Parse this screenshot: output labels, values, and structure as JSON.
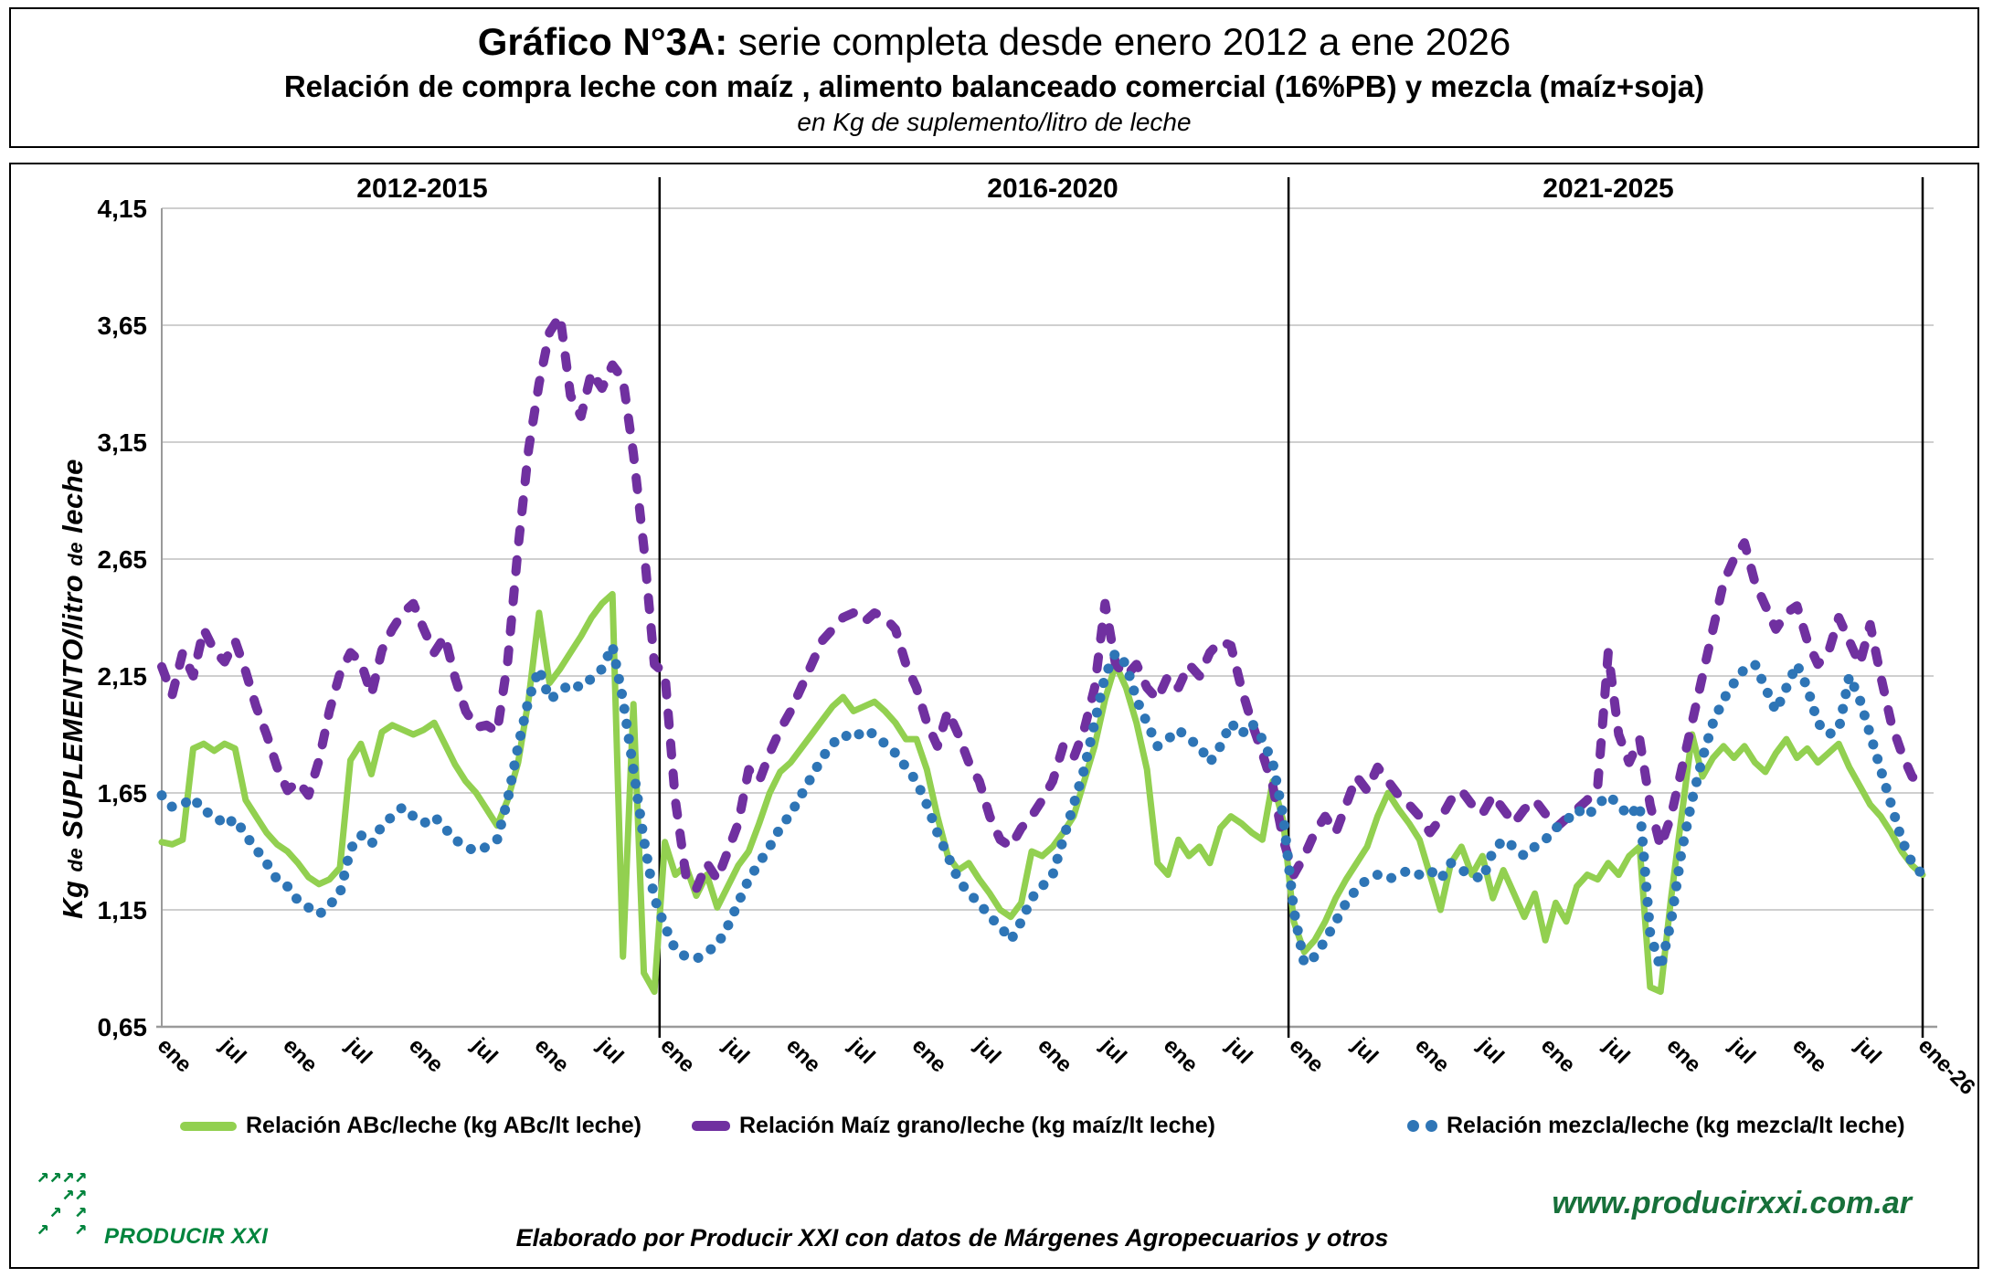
{
  "title": {
    "line1_bold": "Gráfico N°3A:",
    "line1_rest": " serie completa desde enero 2012 a ene 2026",
    "line2": "Relación de compra leche con maíz , alimento balanceado comercial (16%PB) y mezcla (maíz+soja)",
    "line3": "en Kg de suplemento/litro de leche"
  },
  "axis": {
    "y_title_parts": [
      "Kg ",
      "de",
      " SUPLEMENTO/litro ",
      "de",
      " leche"
    ]
  },
  "chart": {
    "period_labels": [
      "2012-2015",
      "2016-2020",
      "2021-2025"
    ]
  },
  "legend": [
    {
      "label": "Relación ABc/leche (kg ABc/lt leche)",
      "color": "#92D050",
      "style": "solid-line"
    },
    {
      "label": "Relación Maíz grano/leche (kg maíz/lt leche)",
      "color": "#7030A0",
      "style": "dashed-line"
    },
    {
      "label": "Relación mezcla/leche (kg mezcla/lt leche)",
      "color": "#2E75B6",
      "style": "dotted-line"
    }
  ],
  "footer": {
    "logo_text": "PRODUCIR XXI",
    "logo_arrows": [
      "↗↗↗↗",
      "  ↗↗",
      " ↗ ↗",
      "↗  ↗"
    ],
    "logo_color": "#00843D",
    "credit": "Elaborado por Producir XXI con datos de Márgenes Agropecuarios y otros",
    "website": "www.producirxxi.com.ar",
    "website_color": "#17703A"
  },
  "chart_data": {
    "type": "line",
    "title": "Relación de compra leche con maíz, alimento balanceado comercial (16%PB) y mezcla (maíz+soja), en Kg de suplemento/litro de leche",
    "ylabel": "Kg de SUPLEMENTO/litro de leche",
    "ylim": [
      0.65,
      4.15
    ],
    "x_start": "ene-2012",
    "x_end": "ene-2026",
    "x_points": 169,
    "x_unit": "month",
    "x_tick_every": 6,
    "x_tick_labels": [
      "ene",
      "jul",
      "ene",
      "jul",
      "ene",
      "jul",
      "ene",
      "jul",
      "ene",
      "jul",
      "ene",
      "jul",
      "ene",
      "jul",
      "ene",
      "jul",
      "ene",
      "jul",
      "ene",
      "jul",
      "ene",
      "jul",
      "ene",
      "jul",
      "ene",
      "jul",
      "ene",
      "jul",
      "ene-26"
    ],
    "y_ticks": [
      {
        "value": 0.65,
        "label": "0,65"
      },
      {
        "value": 1.15,
        "label": "1,15"
      },
      {
        "value": 1.65,
        "label": "1,65"
      },
      {
        "value": 2.15,
        "label": "2,15"
      },
      {
        "value": 2.65,
        "label": "2,65"
      },
      {
        "value": 3.15,
        "label": "3,15"
      },
      {
        "value": 3.65,
        "label": "3,65"
      },
      {
        "value": 4.15,
        "label": "4,15"
      }
    ],
    "divider_months": [
      47.5,
      107.5,
      168
    ],
    "grid": true,
    "legend_position": "bottom",
    "series": [
      {
        "id": "abc",
        "name": "Relación ABc/leche (kg ABc/lt leche)",
        "color": "#92D050",
        "style": "solid",
        "width": 7,
        "values": [
          1.44,
          1.43,
          1.45,
          1.84,
          1.86,
          1.83,
          1.86,
          1.84,
          1.62,
          1.55,
          1.48,
          1.43,
          1.4,
          1.35,
          1.29,
          1.26,
          1.28,
          1.33,
          1.79,
          1.86,
          1.73,
          1.91,
          1.94,
          1.92,
          1.9,
          1.92,
          1.95,
          1.86,
          1.77,
          1.7,
          1.65,
          1.58,
          1.51,
          1.62,
          1.78,
          2.05,
          2.42,
          2.12,
          2.18,
          2.25,
          2.32,
          2.4,
          2.46,
          2.5,
          0.95,
          2.03,
          0.88,
          0.8,
          1.44,
          1.3,
          1.34,
          1.21,
          1.3,
          1.16,
          1.25,
          1.34,
          1.4,
          1.52,
          1.65,
          1.74,
          1.78,
          1.84,
          1.9,
          1.96,
          2.02,
          2.06,
          2.0,
          2.02,
          2.04,
          2.0,
          1.95,
          1.88,
          1.88,
          1.75,
          1.55,
          1.38,
          1.32,
          1.35,
          1.28,
          1.22,
          1.15,
          1.12,
          1.18,
          1.4,
          1.38,
          1.42,
          1.48,
          1.55,
          1.7,
          1.85,
          2.05,
          2.2,
          2.1,
          1.95,
          1.75,
          1.35,
          1.3,
          1.45,
          1.38,
          1.42,
          1.35,
          1.5,
          1.55,
          1.52,
          1.48,
          1.45,
          1.7,
          1.53,
          1.1,
          0.97,
          1.02,
          1.1,
          1.2,
          1.28,
          1.35,
          1.42,
          1.55,
          1.65,
          1.58,
          1.52,
          1.45,
          1.3,
          1.15,
          1.35,
          1.42,
          1.3,
          1.38,
          1.2,
          1.32,
          1.22,
          1.12,
          1.22,
          1.02,
          1.18,
          1.1,
          1.25,
          1.3,
          1.28,
          1.35,
          1.3,
          1.38,
          1.42,
          0.82,
          0.8,
          1.2,
          1.55,
          1.9,
          1.72,
          1.8,
          1.85,
          1.8,
          1.85,
          1.78,
          1.74,
          1.82,
          1.88,
          1.8,
          1.84,
          1.78,
          1.82,
          1.86,
          1.76,
          1.68,
          1.6,
          1.55,
          1.48,
          1.4,
          1.34,
          1.3
        ]
      },
      {
        "id": "maiz",
        "name": "Relación Maíz grano/leche (kg maíz/lt leche)",
        "color": "#7030A0",
        "style": "dashed",
        "dash": "13 20",
        "width": 10,
        "values": [
          2.19,
          2.07,
          2.25,
          2.15,
          2.35,
          2.26,
          2.21,
          2.3,
          2.17,
          2.02,
          1.9,
          1.76,
          1.66,
          1.7,
          1.64,
          1.79,
          2.0,
          2.16,
          2.25,
          2.21,
          2.07,
          2.26,
          2.35,
          2.42,
          2.46,
          2.35,
          2.25,
          2.32,
          2.14,
          2.0,
          1.93,
          1.94,
          1.91,
          2.21,
          2.7,
          3.12,
          3.4,
          3.62,
          3.69,
          3.35,
          3.26,
          3.45,
          3.38,
          3.48,
          3.42,
          3.1,
          2.7,
          2.2,
          2.16,
          1.62,
          1.3,
          1.24,
          1.35,
          1.28,
          1.4,
          1.52,
          1.75,
          1.7,
          1.82,
          1.92,
          2.0,
          2.1,
          2.2,
          2.3,
          2.35,
          2.4,
          2.42,
          2.38,
          2.42,
          2.4,
          2.35,
          2.2,
          2.1,
          1.95,
          1.85,
          2.0,
          1.9,
          1.78,
          1.7,
          1.55,
          1.45,
          1.42,
          1.5,
          1.55,
          1.62,
          1.7,
          1.85,
          1.8,
          1.92,
          2.1,
          2.46,
          2.2,
          2.15,
          2.2,
          2.1,
          2.05,
          2.15,
          2.1,
          2.2,
          2.15,
          2.25,
          2.3,
          2.28,
          2.1,
          1.95,
          1.82,
          1.68,
          1.45,
          1.3,
          1.38,
          1.48,
          1.55,
          1.48,
          1.6,
          1.72,
          1.66,
          1.76,
          1.7,
          1.64,
          1.6,
          1.55,
          1.48,
          1.54,
          1.62,
          1.66,
          1.6,
          1.56,
          1.64,
          1.58,
          1.52,
          1.58,
          1.62,
          1.56,
          1.5,
          1.54,
          1.58,
          1.62,
          1.68,
          2.25,
          1.9,
          1.78,
          1.88,
          1.6,
          1.42,
          1.55,
          1.75,
          1.95,
          2.15,
          2.35,
          2.55,
          2.65,
          2.72,
          2.55,
          2.45,
          2.35,
          2.42,
          2.45,
          2.3,
          2.2,
          2.25,
          2.4,
          2.3,
          2.2,
          2.37,
          2.15,
          1.95,
          1.82,
          1.72,
          1.68
        ]
      },
      {
        "id": "mezcla",
        "name": "Relación mezcla/leche (kg mezcla/lt leche)",
        "color": "#2E75B6",
        "style": "dotted",
        "dash": "0.1 16.5",
        "width": 11,
        "values": [
          1.64,
          1.59,
          1.6,
          1.63,
          1.57,
          1.56,
          1.51,
          1.54,
          1.47,
          1.41,
          1.35,
          1.28,
          1.25,
          1.19,
          1.16,
          1.13,
          1.17,
          1.22,
          1.41,
          1.47,
          1.43,
          1.51,
          1.55,
          1.59,
          1.55,
          1.52,
          1.55,
          1.5,
          1.45,
          1.42,
          1.4,
          1.42,
          1.45,
          1.62,
          1.85,
          2.05,
          2.18,
          2.05,
          2.08,
          2.12,
          2.1,
          2.14,
          2.18,
          2.28,
          2.05,
          1.75,
          1.45,
          1.2,
          1.08,
          0.98,
          0.95,
          0.94,
          0.97,
          1.0,
          1.08,
          1.18,
          1.28,
          1.35,
          1.42,
          1.5,
          1.56,
          1.64,
          1.72,
          1.8,
          1.86,
          1.9,
          1.88,
          1.92,
          1.9,
          1.86,
          1.82,
          1.76,
          1.7,
          1.6,
          1.48,
          1.38,
          1.28,
          1.22,
          1.18,
          1.12,
          1.08,
          1.02,
          1.1,
          1.2,
          1.25,
          1.3,
          1.45,
          1.6,
          1.75,
          1.95,
          2.15,
          2.25,
          2.2,
          2.05,
          1.95,
          1.85,
          1.88,
          1.92,
          1.88,
          1.85,
          1.78,
          1.85,
          1.95,
          1.9,
          1.95,
          1.88,
          1.78,
          1.55,
          1.15,
          0.92,
          0.95,
          1.02,
          1.1,
          1.18,
          1.24,
          1.28,
          1.3,
          1.28,
          1.3,
          1.32,
          1.3,
          1.32,
          1.28,
          1.35,
          1.32,
          1.3,
          1.28,
          1.4,
          1.45,
          1.42,
          1.38,
          1.42,
          1.45,
          1.5,
          1.53,
          1.58,
          1.55,
          1.6,
          1.64,
          1.6,
          1.55,
          1.6,
          1.05,
          0.9,
          1.1,
          1.4,
          1.62,
          1.8,
          1.95,
          2.05,
          2.12,
          2.18,
          2.2,
          2.1,
          2.0,
          2.1,
          2.2,
          2.1,
          1.95,
          1.9,
          1.92,
          2.15,
          2.05,
          1.9,
          1.75,
          1.6,
          1.45,
          1.35,
          1.3
        ]
      }
    ]
  }
}
